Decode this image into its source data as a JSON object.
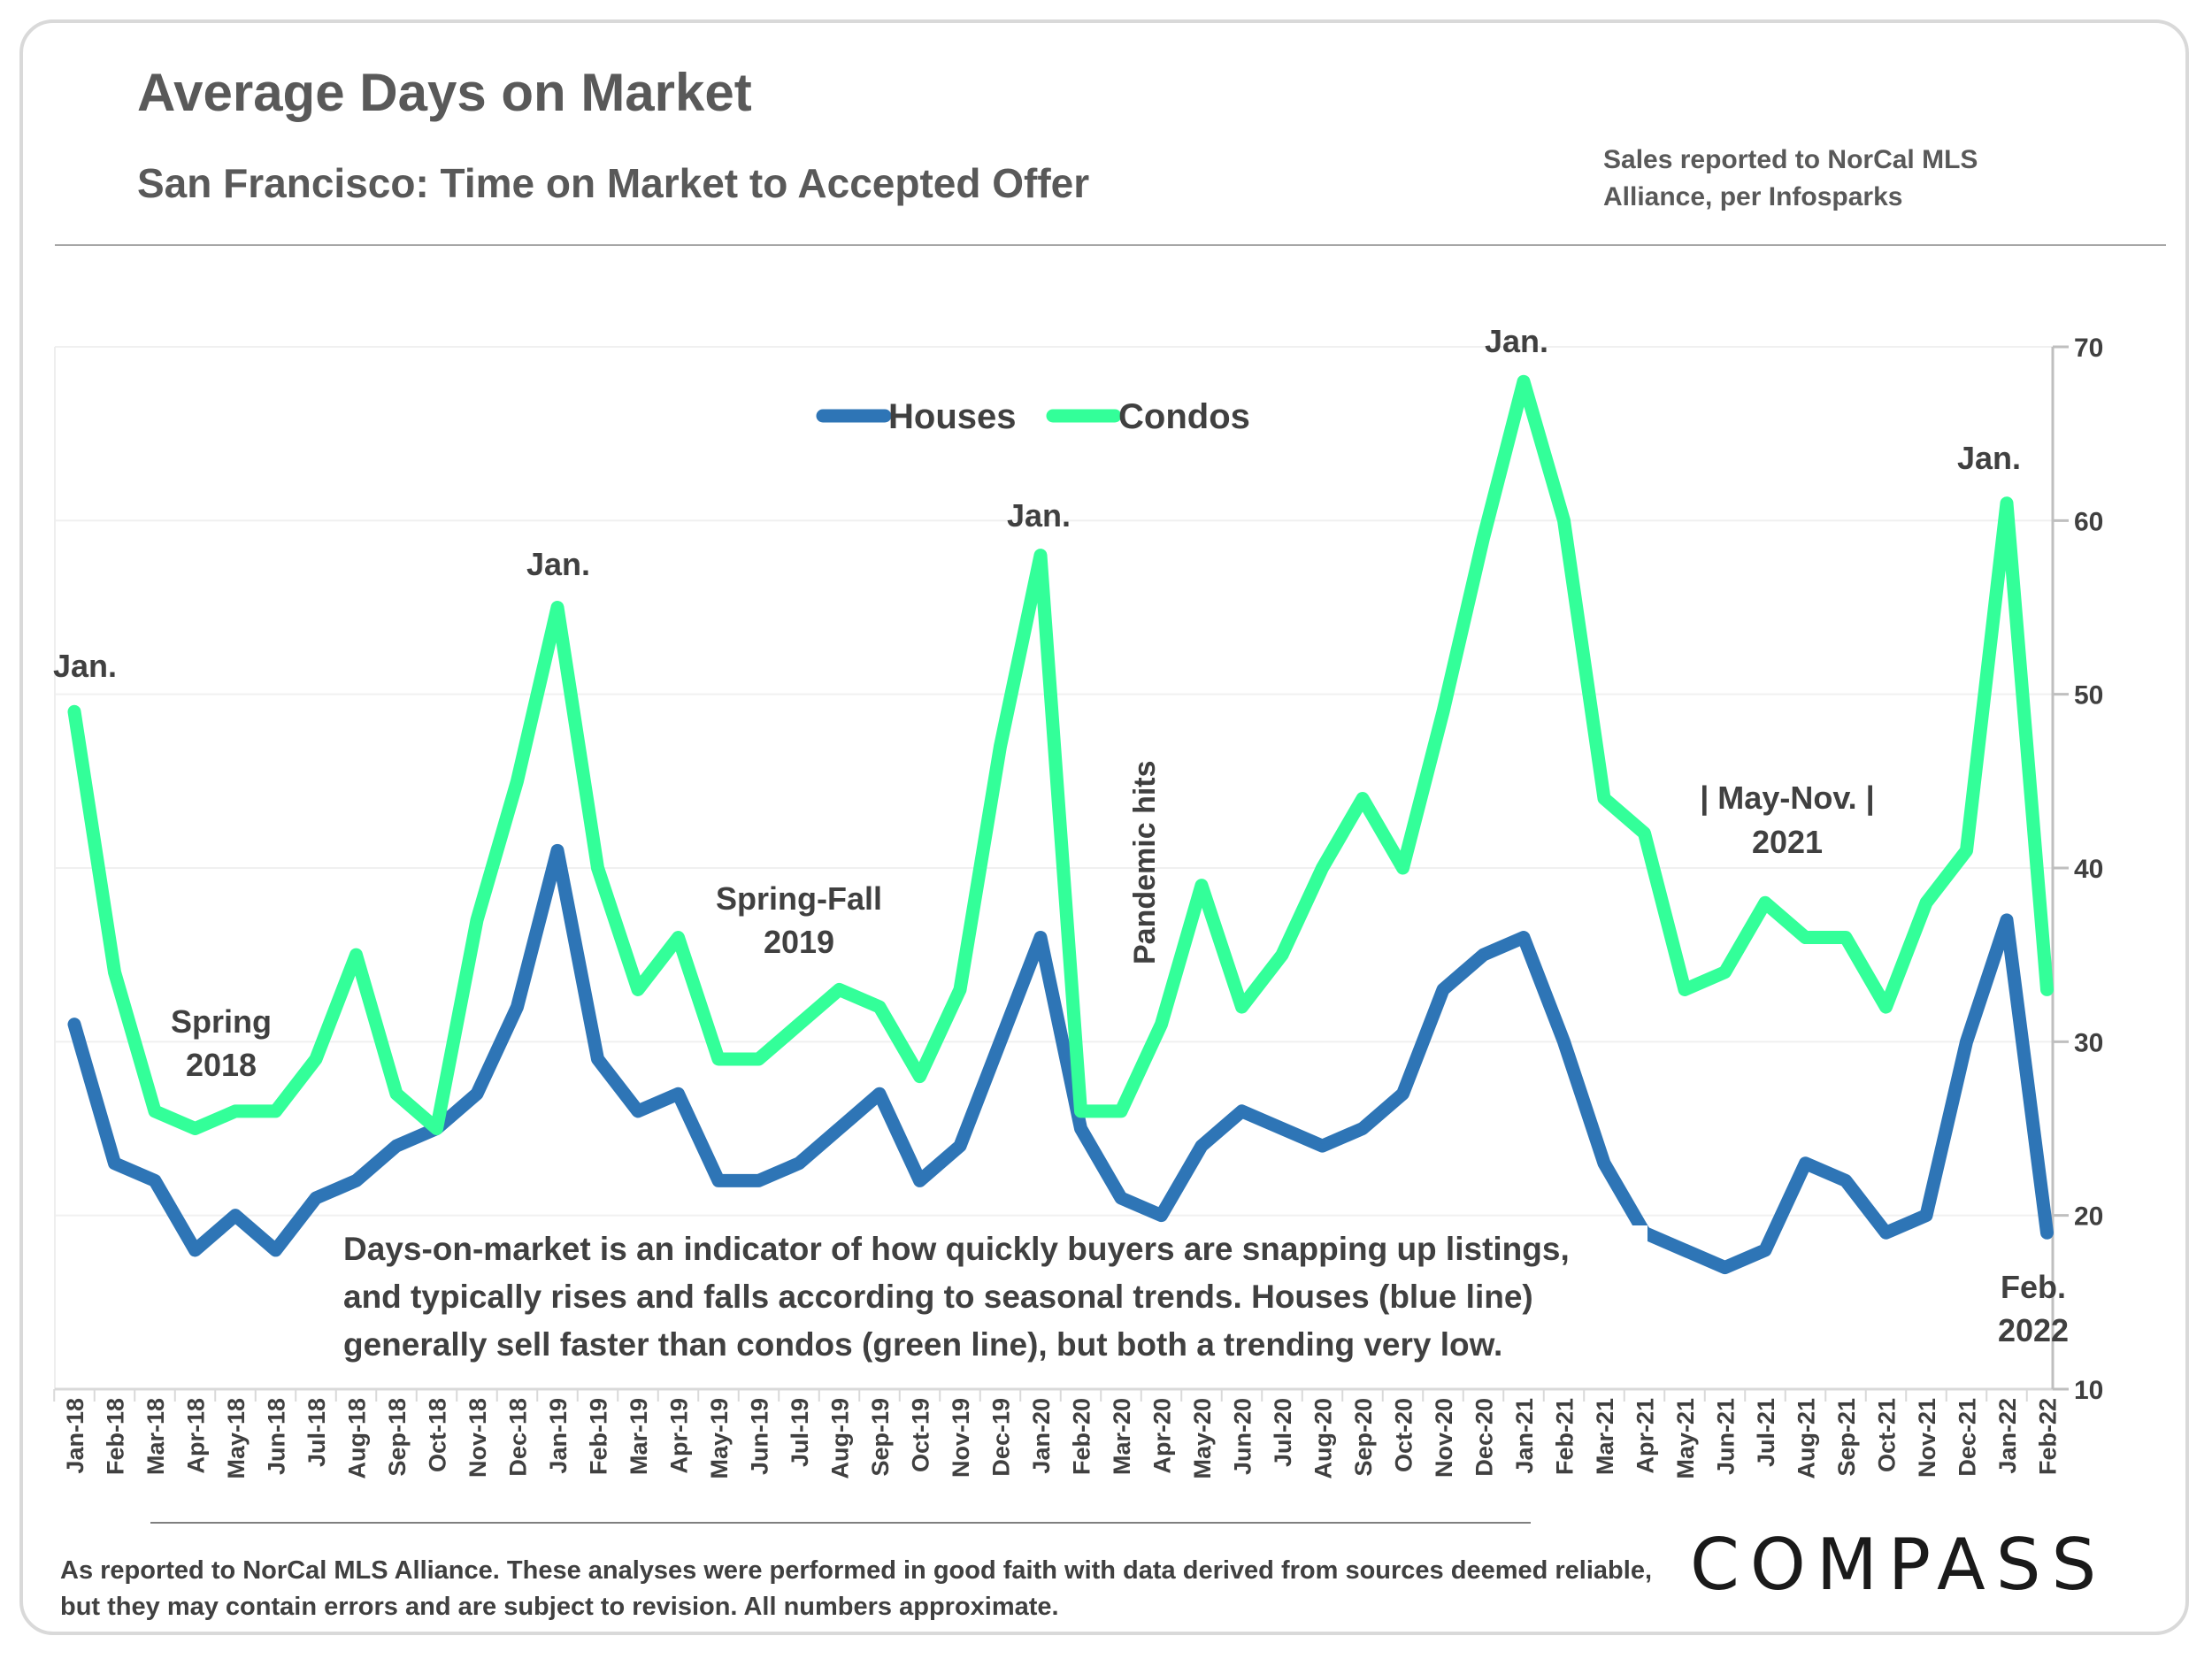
{
  "header": {
    "title": "Average Days on Market",
    "subtitle": "San Francisco: Time on Market to Accepted Offer",
    "source": "Sales reported to NorCal MLS Alliance, per Infosparks"
  },
  "footer": {
    "disclaimer": "As reported to NorCal MLS Alliance. These analyses were performed in good faith with data derived from sources deemed reliable, but they may contain errors and are subject to revision. All numbers approximate.",
    "logo": "COMPASS"
  },
  "chart_data": {
    "type": "line",
    "title": "Average Days on Market",
    "xlabel": "",
    "ylabel": "",
    "ylim": [
      10,
      70
    ],
    "yticks": [
      10,
      20,
      30,
      40,
      50,
      60,
      70
    ],
    "grid": true,
    "legend_position": "top-center",
    "categories": [
      "Jan-18",
      "Feb-18",
      "Mar-18",
      "Apr-18",
      "May-18",
      "Jun-18",
      "Jul-18",
      "Aug-18",
      "Sep-18",
      "Oct-18",
      "Nov-18",
      "Dec-18",
      "Jan-19",
      "Feb-19",
      "Mar-19",
      "Apr-19",
      "May-19",
      "Jun-19",
      "Jul-19",
      "Aug-19",
      "Sep-19",
      "Oct-19",
      "Nov-19",
      "Dec-19",
      "Jan-20",
      "Feb-20",
      "Mar-20",
      "Apr-20",
      "May-20",
      "Jun-20",
      "Jul-20",
      "Aug-20",
      "Sep-20",
      "Oct-20",
      "Nov-20",
      "Dec-20",
      "Jan-21",
      "Feb-21",
      "Mar-21",
      "Apr-21",
      "May-21",
      "Jun-21",
      "Jul-21",
      "Aug-21",
      "Sep-21",
      "Oct-21",
      "Nov-21",
      "Dec-21",
      "Jan-22",
      "Feb-22"
    ],
    "series": [
      {
        "name": "Houses",
        "color": "#2e75b6",
        "values": [
          31,
          23,
          22,
          18,
          20,
          18,
          21,
          22,
          24,
          25,
          27,
          32,
          41,
          29,
          26,
          27,
          22,
          22,
          23,
          25,
          27,
          22,
          24,
          30,
          36,
          25,
          21,
          20,
          24,
          26,
          25,
          24,
          25,
          27,
          33,
          35,
          36,
          30,
          23,
          19,
          18,
          17,
          18,
          23,
          22,
          19,
          20,
          30,
          37,
          19
        ]
      },
      {
        "name": "Condos",
        "color": "#33ff99",
        "values": [
          49,
          34,
          26,
          25,
          26,
          26,
          29,
          35,
          27,
          25,
          37,
          45,
          55,
          40,
          33,
          36,
          29,
          29,
          31,
          33,
          32,
          28,
          33,
          47,
          58,
          26,
          26,
          31,
          39,
          32,
          35,
          40,
          44,
          40,
          49,
          59,
          68,
          60,
          44,
          42,
          33,
          34,
          38,
          36,
          36,
          32,
          38,
          41,
          61,
          33
        ]
      }
    ],
    "annotations": {
      "jan_labels": [
        "Jan.",
        "Jan.",
        "Jan.",
        "Jan.",
        "Jan."
      ],
      "spring_2018": [
        "Spring",
        "2018"
      ],
      "spring_fall_2019": [
        "Spring-Fall",
        "2019"
      ],
      "pandemic": "Pandemic hits",
      "may_nov_2021": [
        "|  May-Nov.  |",
        "2021"
      ],
      "feb_2022": [
        "Feb.",
        "2022"
      ],
      "note": [
        "Days-on-market is an indicator of how quickly buyers are snapping up listings,",
        "and typically rises and falls according to seasonal trends. Houses (blue line)",
        "generally sell faster than condos (green line), but both a trending very low."
      ]
    }
  }
}
